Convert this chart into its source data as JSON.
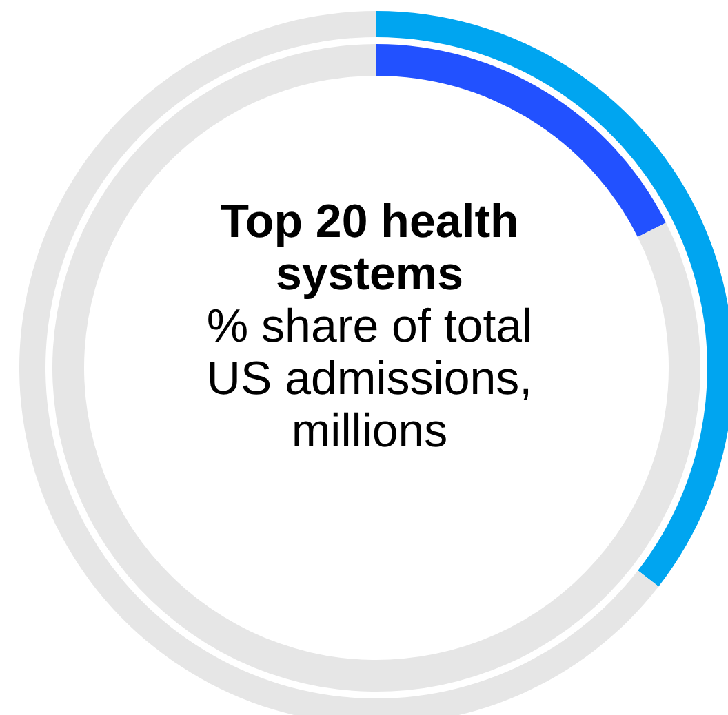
{
  "chart_data": [
    {
      "type": "donut",
      "title": "Top 20 health systems",
      "subtitle": "% share of total US admissions, millions",
      "categories": [
        null,
        null
      ],
      "values": [
        35.5,
        64.5
      ],
      "colors": [
        "#00a5f0",
        "#e6e6e6"
      ]
    },
    {
      "type": "donut",
      "categories": [
        null,
        null
      ],
      "values": [
        17.6,
        82.4
      ],
      "colors": [
        "#2251ff",
        "#e6e6e6"
      ]
    }
  ]
}
